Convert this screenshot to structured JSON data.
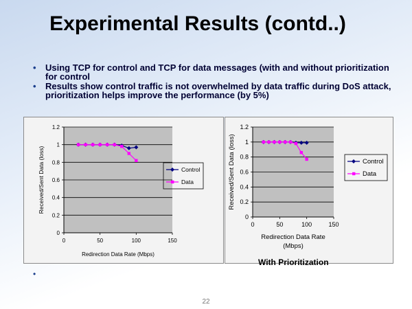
{
  "slide": {
    "title": "Experimental Results (contd..)",
    "bullets": [
      "Using TCP for control and TCP for data messages (with and without prioritization for control",
      "Results show control traffic is not overwhelmed by data traffic during DoS attack, prioritization helps improve the performance (by 5%)"
    ],
    "caption": "With Prioritization",
    "page_number": "22",
    "bullet_glyph": "•"
  },
  "chart_data": [
    {
      "type": "line",
      "title": "",
      "xlabel": "Redirection Data Rate (Mbps)",
      "ylabel": "Received/Sent Data (loss)",
      "xlim": [
        0,
        150
      ],
      "ylim": [
        0,
        1.2
      ],
      "xticks": [
        "0",
        "50",
        "100",
        "150"
      ],
      "yticks": [
        "0",
        "0.2",
        "0.4",
        "0.6",
        "0.8",
        "1",
        "1.2"
      ],
      "grid": true,
      "legend": "right",
      "series": [
        {
          "name": "Control",
          "color": "#000080",
          "marker": "diamond",
          "x": [
            20,
            30,
            40,
            50,
            60,
            70,
            80,
            90,
            100
          ],
          "y": [
            1.0,
            1.0,
            1.0,
            1.0,
            1.0,
            1.0,
            0.99,
            0.96,
            0.97
          ]
        },
        {
          "name": "Data",
          "color": "#ff00ff",
          "marker": "square",
          "x": [
            20,
            30,
            40,
            50,
            60,
            70,
            80,
            90,
            100
          ],
          "y": [
            1.0,
            1.0,
            1.0,
            1.0,
            1.0,
            1.0,
            0.98,
            0.9,
            0.82
          ]
        }
      ]
    },
    {
      "type": "line",
      "title": "",
      "xlabel": "Redirection Data Rate (Mbps)",
      "ylabel": "Received/Sent Data (loss)",
      "xlim": [
        0,
        150
      ],
      "ylim": [
        0,
        1.2
      ],
      "xticks": [
        "0",
        "50",
        "100",
        "150"
      ],
      "yticks": [
        "0",
        "0.2",
        "0.4",
        "0.6",
        "0.8",
        "1",
        "1.2"
      ],
      "grid": true,
      "legend": "right",
      "series": [
        {
          "name": "Control",
          "color": "#000080",
          "marker": "diamond",
          "x": [
            20,
            30,
            40,
            50,
            60,
            70,
            80,
            90,
            100
          ],
          "y": [
            1.0,
            1.0,
            1.0,
            1.0,
            1.0,
            1.0,
            0.99,
            0.99,
            0.99
          ]
        },
        {
          "name": "Data",
          "color": "#ff00ff",
          "marker": "square",
          "x": [
            20,
            30,
            40,
            50,
            60,
            70,
            80,
            90,
            100
          ],
          "y": [
            1.0,
            1.0,
            1.0,
            1.0,
            1.0,
            1.0,
            0.98,
            0.86,
            0.77
          ]
        }
      ]
    }
  ]
}
